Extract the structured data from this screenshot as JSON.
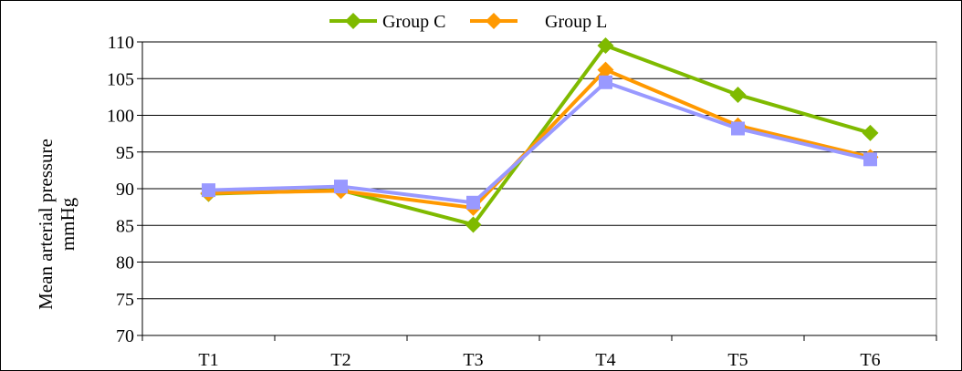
{
  "chart_data": {
    "type": "line",
    "categories": [
      "T1",
      "T2",
      "T3",
      "T4",
      "T5",
      "T6"
    ],
    "ylabel_lines": [
      "Mean arterial pressure",
      "mmHg"
    ],
    "xlabel": "",
    "ylim": [
      70,
      110
    ],
    "yticks": [
      70,
      75,
      80,
      85,
      90,
      95,
      100,
      105,
      110
    ],
    "grid": true,
    "legend_position": "top-center",
    "series": [
      {
        "name": "Group C",
        "color": "#7fba00",
        "marker": "diamond",
        "values": [
          89.3,
          89.8,
          85.1,
          109.5,
          102.8,
          97.6
        ]
      },
      {
        "name": "Group L",
        "color": "#ff9900",
        "marker": "diamond",
        "values": [
          89.4,
          89.7,
          87.4,
          106.2,
          98.6,
          94.3
        ]
      },
      {
        "name": "",
        "color": "#9999ff",
        "marker": "square",
        "values": [
          89.8,
          90.3,
          88.1,
          104.5,
          98.2,
          94.0
        ]
      }
    ]
  }
}
